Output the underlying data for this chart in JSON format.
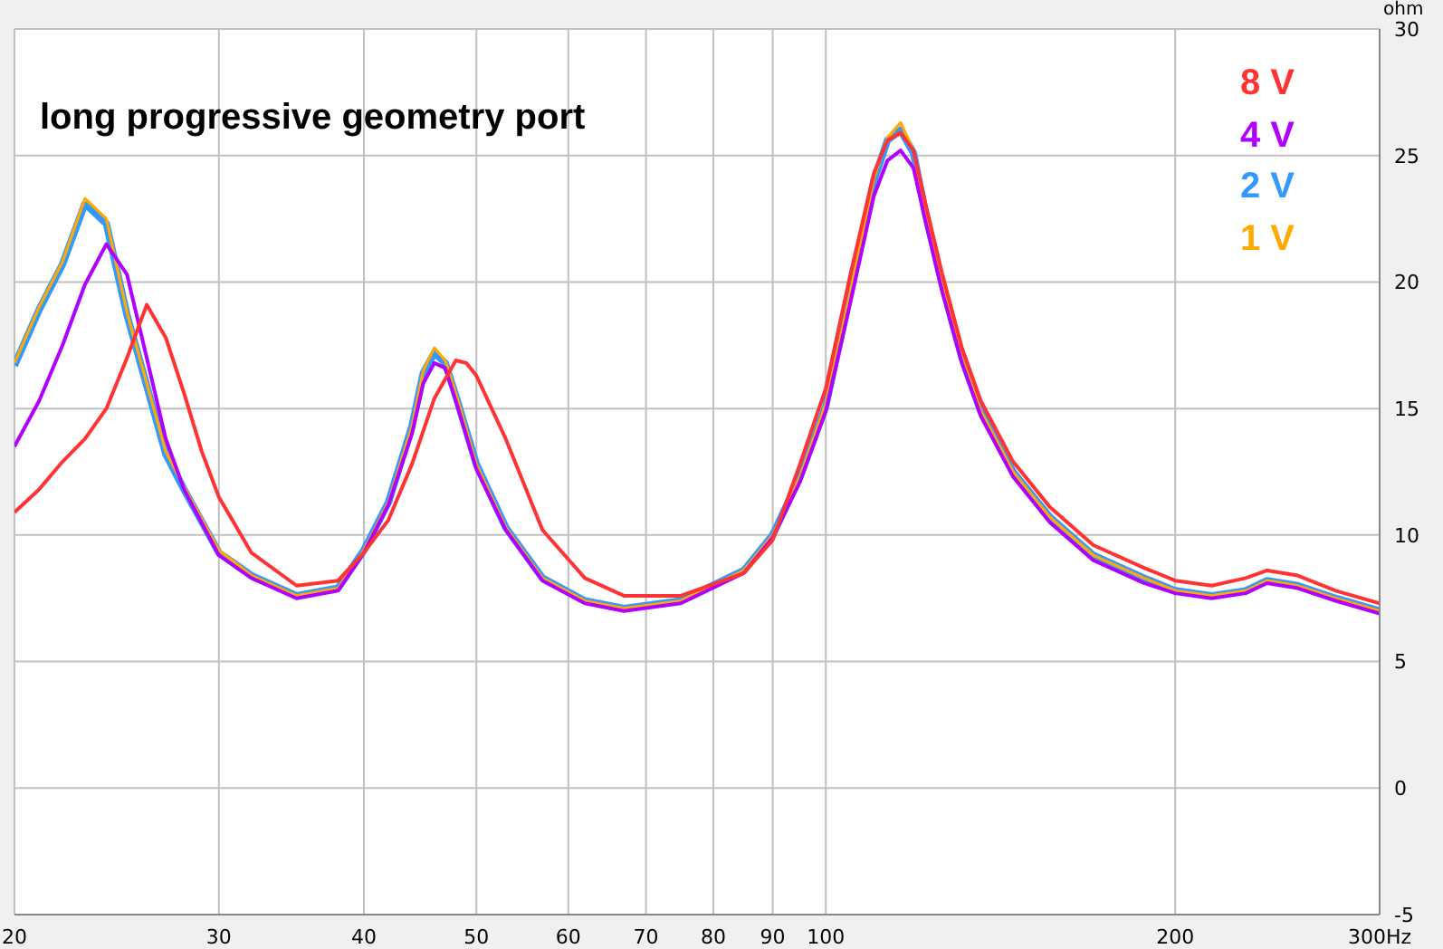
{
  "chart_data": {
    "type": "line",
    "title": "long progressive geometry port",
    "ylabel": "ohm",
    "log": "x",
    "grid": true,
    "legend": "top right",
    "marker": "none",
    "line_style": "solid",
    "xlim": [
      20,
      300
    ],
    "xticks": [
      20,
      30,
      40,
      50,
      60,
      70,
      80,
      90,
      100,
      200,
      {
        "value": 300,
        "label": "300Hz"
      }
    ],
    "ylim": [
      -5,
      30
    ],
    "yticks": [
      -5,
      0,
      5,
      10,
      15,
      20,
      25,
      30
    ],
    "series": [
      {
        "name": "8 V",
        "color": "#ff3333",
        "x": [
          20,
          21,
          22,
          23,
          24,
          25,
          26,
          27,
          28,
          29,
          30,
          32,
          35,
          38,
          40,
          42,
          44,
          46,
          48,
          49,
          50,
          53,
          57,
          62,
          67,
          75,
          85,
          90,
          95,
          100,
          105,
          110,
          113,
          116,
          119,
          122,
          126,
          131,
          136,
          145,
          156,
          170,
          188,
          200,
          215,
          230,
          240,
          255,
          275,
          300
        ],
        "values": [
          10.9,
          11.8,
          12.9,
          13.8,
          15.0,
          17.0,
          19.1,
          17.8,
          15.6,
          13.3,
          11.5,
          9.3,
          8.0,
          8.2,
          9.3,
          10.6,
          12.8,
          15.4,
          16.9,
          16.8,
          16.3,
          13.8,
          10.2,
          8.3,
          7.6,
          7.6,
          8.5,
          9.8,
          12.8,
          15.8,
          20.3,
          24.3,
          25.6,
          25.9,
          25.2,
          23.0,
          20.3,
          17.4,
          15.3,
          12.9,
          11.1,
          9.6,
          8.7,
          8.2,
          8.0,
          8.3,
          8.6,
          8.4,
          7.8,
          7.3
        ]
      },
      {
        "name": "4 V",
        "color": "#b000ff",
        "x": [
          20,
          21,
          22,
          23,
          24,
          25,
          26,
          27,
          28,
          30,
          32,
          35,
          38,
          40,
          42,
          44,
          45,
          46,
          47,
          48,
          50,
          53,
          57,
          62,
          67,
          75,
          85,
          90,
          95,
          100,
          105,
          110,
          113,
          116,
          119,
          122,
          126,
          131,
          136,
          145,
          156,
          170,
          188,
          200,
          215,
          230,
          240,
          255,
          275,
          300
        ],
        "values": [
          13.5,
          15.3,
          17.5,
          19.9,
          21.5,
          20.3,
          17.0,
          13.8,
          11.8,
          9.2,
          8.3,
          7.5,
          7.8,
          9.3,
          11.2,
          14.0,
          16.0,
          16.8,
          16.6,
          15.3,
          12.6,
          10.2,
          8.2,
          7.3,
          7.0,
          7.3,
          8.5,
          9.9,
          12.1,
          14.9,
          19.2,
          23.4,
          24.8,
          25.2,
          24.5,
          22.3,
          19.6,
          16.8,
          14.7,
          12.3,
          10.5,
          9.0,
          8.1,
          7.7,
          7.5,
          7.7,
          8.1,
          7.9,
          7.4,
          6.9
        ]
      },
      {
        "name": "2 V",
        "color": "#3399ff",
        "x": [
          20,
          21,
          22,
          23,
          24,
          25,
          26,
          27,
          28,
          30,
          32,
          35,
          38,
          40,
          42,
          44,
          45,
          46,
          47,
          48,
          50,
          53,
          57,
          62,
          67,
          75,
          85,
          90,
          95,
          100,
          105,
          110,
          113,
          116,
          119,
          122,
          126,
          131,
          136,
          145,
          156,
          170,
          188,
          200,
          215,
          230,
          240,
          255,
          275,
          300
        ],
        "values": [
          16.7,
          18.9,
          20.7,
          23.1,
          22.3,
          18.7,
          15.9,
          13.2,
          11.8,
          9.3,
          8.4,
          7.6,
          7.9,
          9.4,
          11.3,
          14.3,
          16.4,
          17.2,
          16.8,
          15.5,
          12.8,
          10.3,
          8.3,
          7.4,
          7.1,
          7.4,
          8.6,
          10.0,
          12.3,
          15.1,
          19.6,
          24.0,
          25.6,
          26.0,
          25.1,
          22.6,
          19.9,
          17.0,
          14.9,
          12.5,
          10.7,
          9.2,
          8.3,
          7.8,
          7.6,
          7.8,
          8.2,
          8.0,
          7.5,
          7.0
        ]
      },
      {
        "name": "1 V",
        "color": "#ffaa00",
        "x": [
          20,
          21,
          22,
          23,
          24,
          25,
          26,
          27,
          28,
          30,
          32,
          35,
          38,
          40,
          42,
          44,
          45,
          46,
          47,
          48,
          50,
          53,
          57,
          62,
          67,
          75,
          85,
          90,
          95,
          100,
          105,
          110,
          113,
          116,
          119,
          122,
          126,
          131,
          136,
          145,
          156,
          170,
          188,
          200,
          215,
          230,
          240,
          255,
          275,
          300
        ],
        "values": [
          16.8,
          19.0,
          20.8,
          23.3,
          22.5,
          18.8,
          16.0,
          13.3,
          11.9,
          9.4,
          8.4,
          7.6,
          7.9,
          9.4,
          11.3,
          14.3,
          16.5,
          17.4,
          16.9,
          15.6,
          12.8,
          10.3,
          8.3,
          7.4,
          7.1,
          7.4,
          8.6,
          10.0,
          12.3,
          15.2,
          19.6,
          24.1,
          25.7,
          26.3,
          25.2,
          22.7,
          19.9,
          17.0,
          14.9,
          12.5,
          10.7,
          9.2,
          8.3,
          7.8,
          7.6,
          7.8,
          8.2,
          8.0,
          7.5,
          7.0
        ]
      }
    ]
  }
}
